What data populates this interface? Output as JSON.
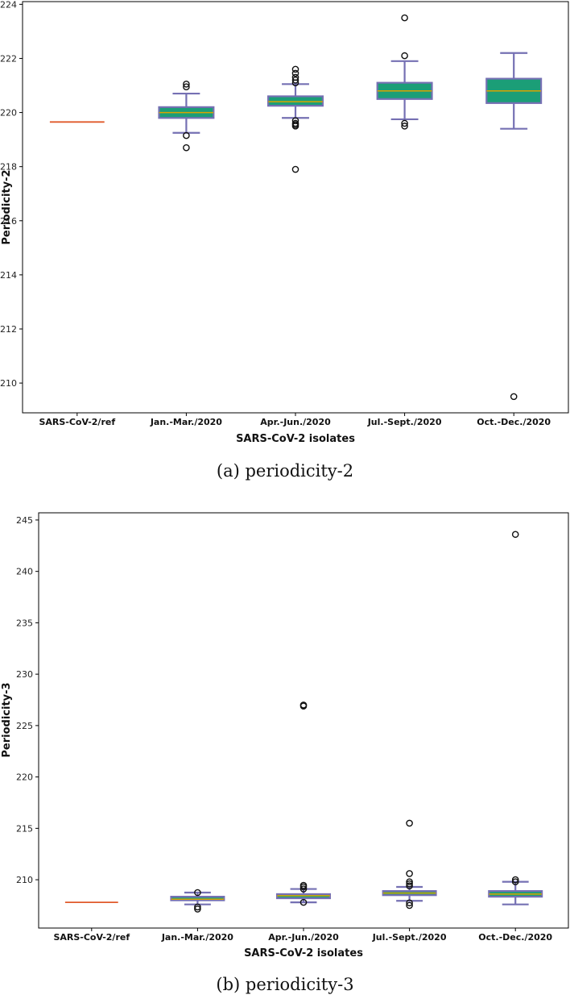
{
  "style": {
    "box_fill": "#1b9e77",
    "box_edge": "#7570b3",
    "whisker": "#7570b3",
    "median": "#d9a400",
    "ref_line": "#e05a2b",
    "flier_edge": "#111111"
  },
  "chart_data": [
    {
      "type": "box",
      "caption": "(a) periodicity-2",
      "xlabel": "SARS-CoV-2 isolates",
      "ylabel": "Periodicity-2",
      "ylim": [
        208.9,
        224.1
      ],
      "yticks": [
        210,
        212,
        214,
        216,
        218,
        220,
        222,
        224
      ],
      "grid": false,
      "categories": [
        "SARS-CoV-2/ref",
        "Jan.-Mar./2020",
        "Apr.-Jun./2020",
        "Jul.-Sept./2020",
        "Oct.-Dec./2020"
      ],
      "boxes": [
        {
          "min": 219.65,
          "q1": 219.65,
          "median": 219.65,
          "q3": 219.65,
          "max": 219.65,
          "fliers": [],
          "ref": true
        },
        {
          "min": 219.25,
          "q1": 219.8,
          "median": 220.0,
          "q3": 220.2,
          "max": 220.7,
          "fliers": [
            218.7,
            219.15,
            220.95,
            221.05
          ]
        },
        {
          "min": 219.8,
          "q1": 220.25,
          "median": 220.4,
          "q3": 220.6,
          "max": 221.05,
          "fliers": [
            217.9,
            219.5,
            219.55,
            219.6,
            219.7,
            221.1,
            221.2,
            221.3,
            221.45,
            221.6
          ]
        },
        {
          "min": 219.75,
          "q1": 220.5,
          "median": 220.8,
          "q3": 221.1,
          "max": 221.9,
          "fliers": [
            219.5,
            219.6,
            222.1,
            223.5
          ]
        },
        {
          "min": 219.4,
          "q1": 220.35,
          "median": 220.8,
          "q3": 221.25,
          "max": 222.2,
          "fliers": [
            209.5
          ]
        }
      ]
    },
    {
      "type": "box",
      "caption": "(b) periodicity-3",
      "xlabel": "SARS-CoV-2 isolates",
      "ylabel": "Periodicity-3",
      "ylim": [
        205.3,
        245.7
      ],
      "yticks": [
        210,
        215,
        220,
        225,
        230,
        235,
        240,
        245
      ],
      "grid": false,
      "categories": [
        "SARS-CoV-2/ref",
        "Jan.-Mar./2020",
        "Apr.-Jun./2020",
        "Jul.-Sept./2020",
        "Oct.-Dec./2020"
      ],
      "boxes": [
        {
          "min": 207.8,
          "q1": 207.8,
          "median": 207.8,
          "q3": 207.8,
          "max": 207.8,
          "fliers": [],
          "ref": true
        },
        {
          "min": 207.6,
          "q1": 208.0,
          "median": 208.1,
          "q3": 208.35,
          "max": 208.75,
          "fliers": [
            207.15,
            207.35,
            208.75
          ]
        },
        {
          "min": 207.8,
          "q1": 208.2,
          "median": 208.45,
          "q3": 208.6,
          "max": 209.1,
          "fliers": [
            207.8,
            209.1,
            209.3,
            209.45,
            226.9,
            227.0
          ]
        },
        {
          "min": 207.95,
          "q1": 208.5,
          "median": 208.7,
          "q3": 208.9,
          "max": 209.3,
          "fliers": [
            207.5,
            207.75,
            209.4,
            209.6,
            209.8,
            210.6,
            215.5
          ]
        },
        {
          "min": 207.6,
          "q1": 208.35,
          "median": 208.6,
          "q3": 208.9,
          "max": 209.8,
          "fliers": [
            209.8,
            210.0,
            243.6
          ]
        }
      ]
    }
  ]
}
